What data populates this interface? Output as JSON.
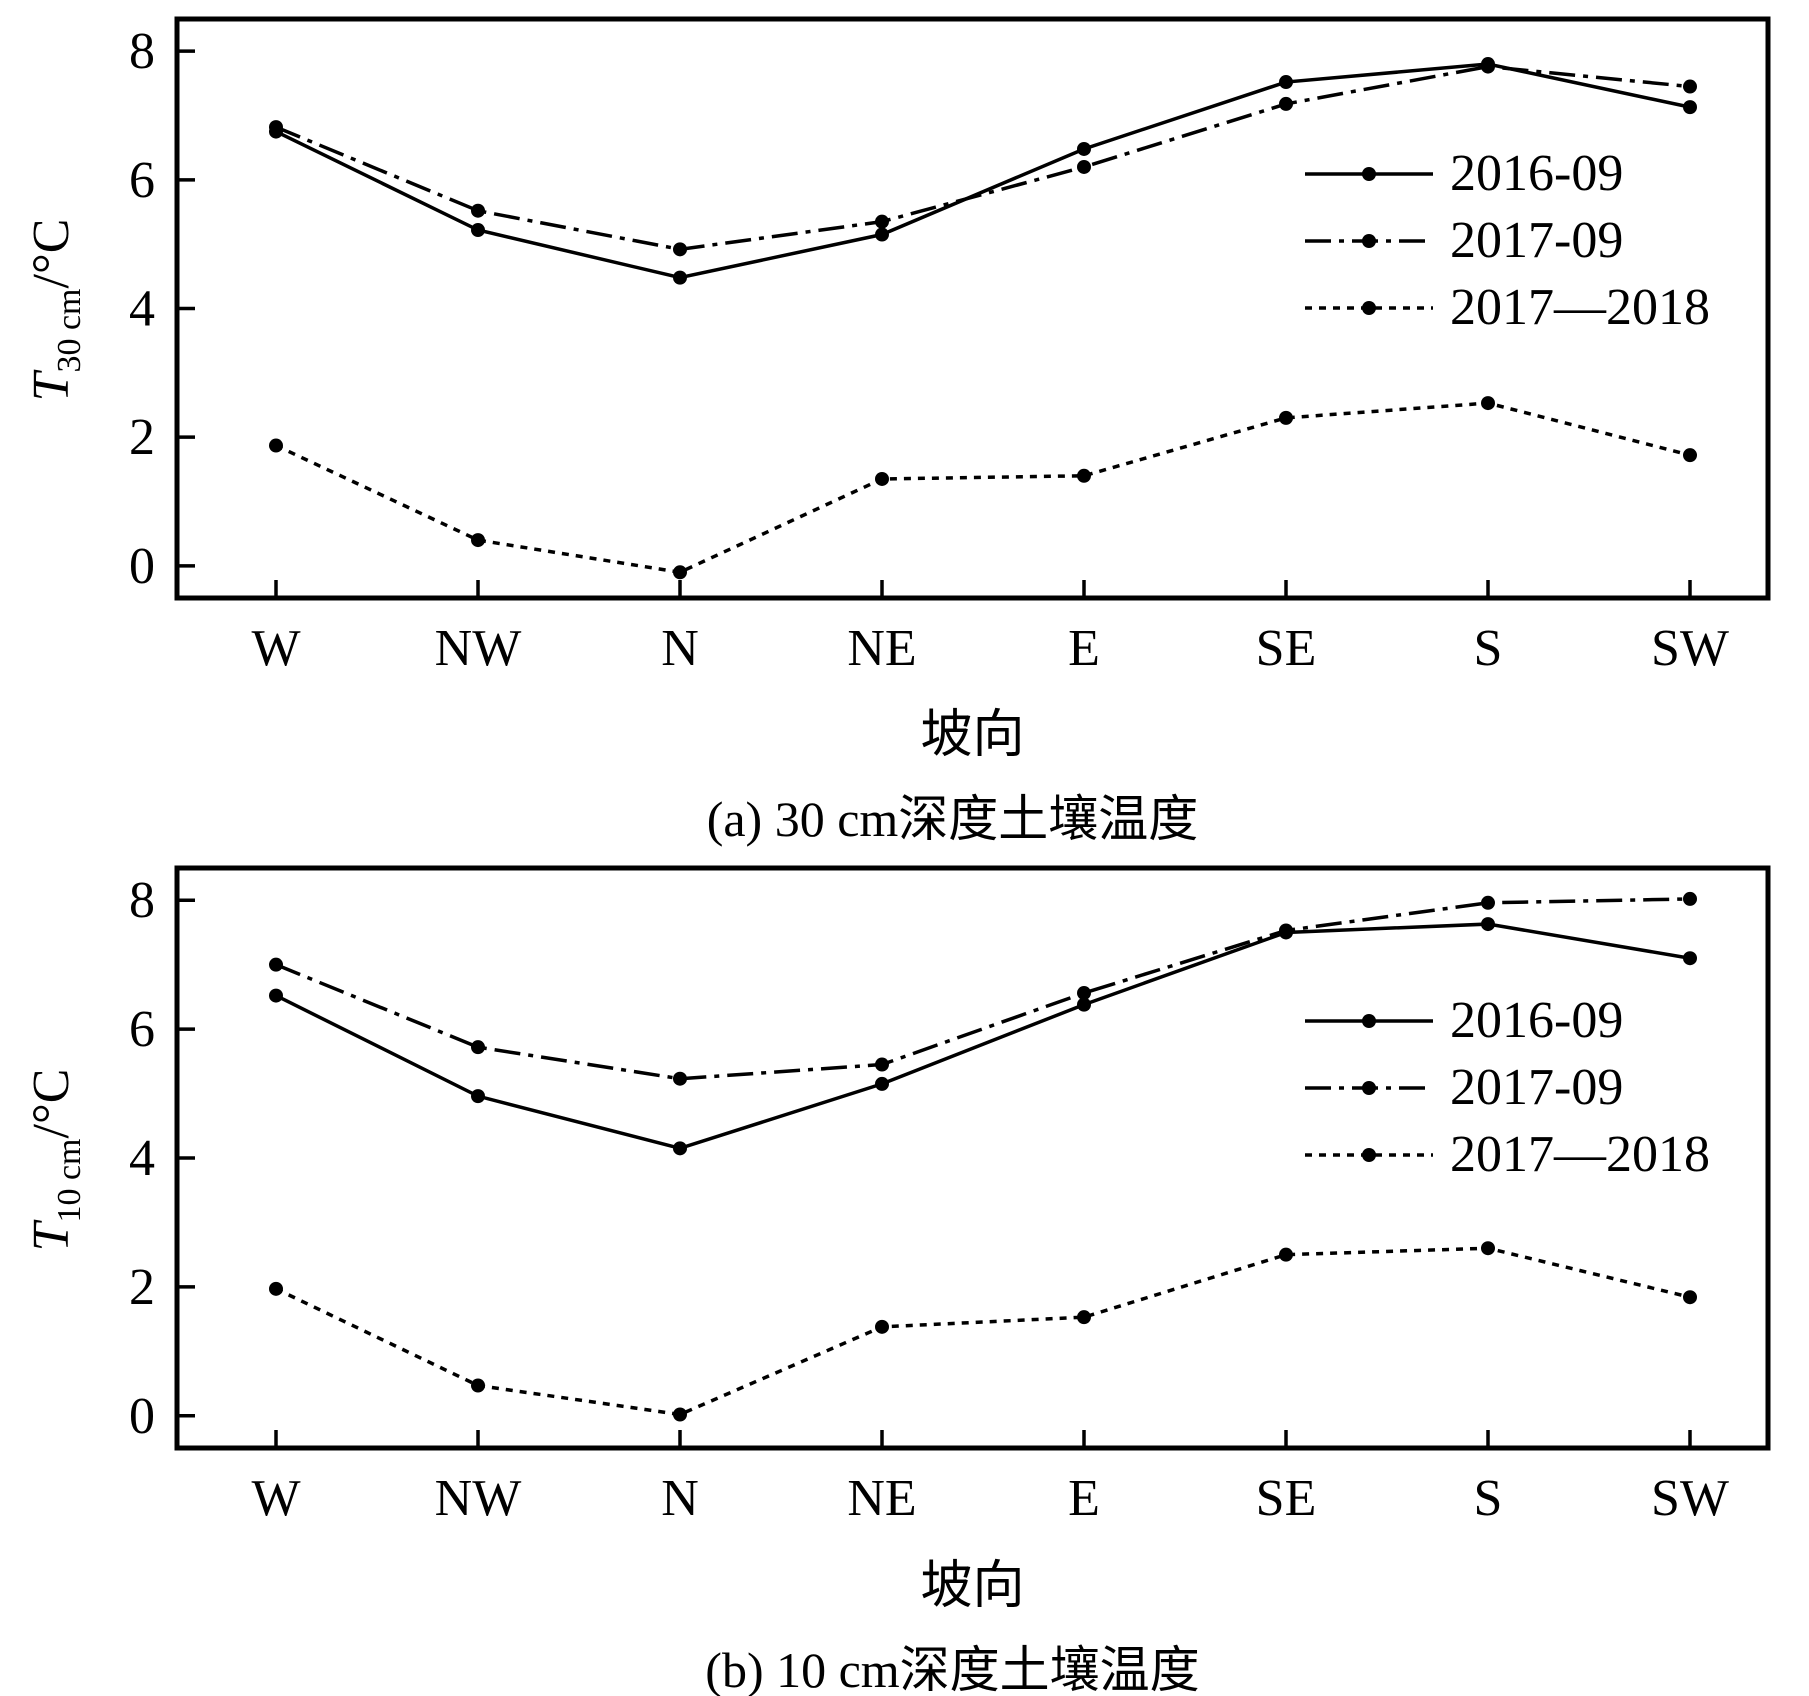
{
  "chart_data": [
    {
      "type": "line",
      "categories": [
        "W",
        "NW",
        "N",
        "NE",
        "E",
        "SE",
        "S",
        "SW"
      ],
      "xlabel": "坡向",
      "ylabel": {
        "symbol": "T",
        "sub": "30 cm",
        "unit": "/°C"
      },
      "yticks": [
        "0",
        "2",
        "4",
        "6",
        "8"
      ],
      "ylim": [
        -0.5,
        8.5
      ],
      "caption": "(a) 30 cm深度土壤温度",
      "legend": "right",
      "series": [
        {
          "name": "2016-09",
          "style": "solid",
          "values": [
            6.75,
            5.22,
            4.48,
            5.15,
            6.48,
            7.52,
            7.8,
            7.13
          ]
        },
        {
          "name": "2017-09",
          "style": "dashdot",
          "values": [
            6.82,
            5.52,
            4.92,
            5.35,
            6.2,
            7.18,
            7.76,
            7.45
          ]
        },
        {
          "name": "2017—2018",
          "style": "dotted",
          "values": [
            1.87,
            0.4,
            -0.1,
            1.35,
            1.4,
            2.3,
            2.53,
            1.72
          ]
        }
      ]
    },
    {
      "type": "line",
      "categories": [
        "W",
        "NW",
        "N",
        "NE",
        "E",
        "SE",
        "S",
        "SW"
      ],
      "xlabel": "坡向",
      "ylabel": {
        "symbol": "T",
        "sub": "10 cm",
        "unit": "/°C"
      },
      "yticks": [
        "0",
        "2",
        "4",
        "6",
        "8"
      ],
      "ylim": [
        -0.5,
        8.5
      ],
      "caption": "(b) 10 cm深度土壤温度",
      "legend": "right",
      "series": [
        {
          "name": "2016-09",
          "style": "solid",
          "values": [
            6.52,
            4.96,
            4.15,
            5.15,
            6.38,
            7.5,
            7.63,
            7.1
          ]
        },
        {
          "name": "2017-09",
          "style": "dashdot",
          "values": [
            7.0,
            5.72,
            5.23,
            5.45,
            6.56,
            7.53,
            7.96,
            8.02
          ]
        },
        {
          "name": "2017—2018",
          "style": "dotted",
          "values": [
            1.97,
            0.47,
            0.02,
            1.38,
            1.53,
            2.5,
            2.6,
            1.84
          ]
        }
      ]
    }
  ]
}
